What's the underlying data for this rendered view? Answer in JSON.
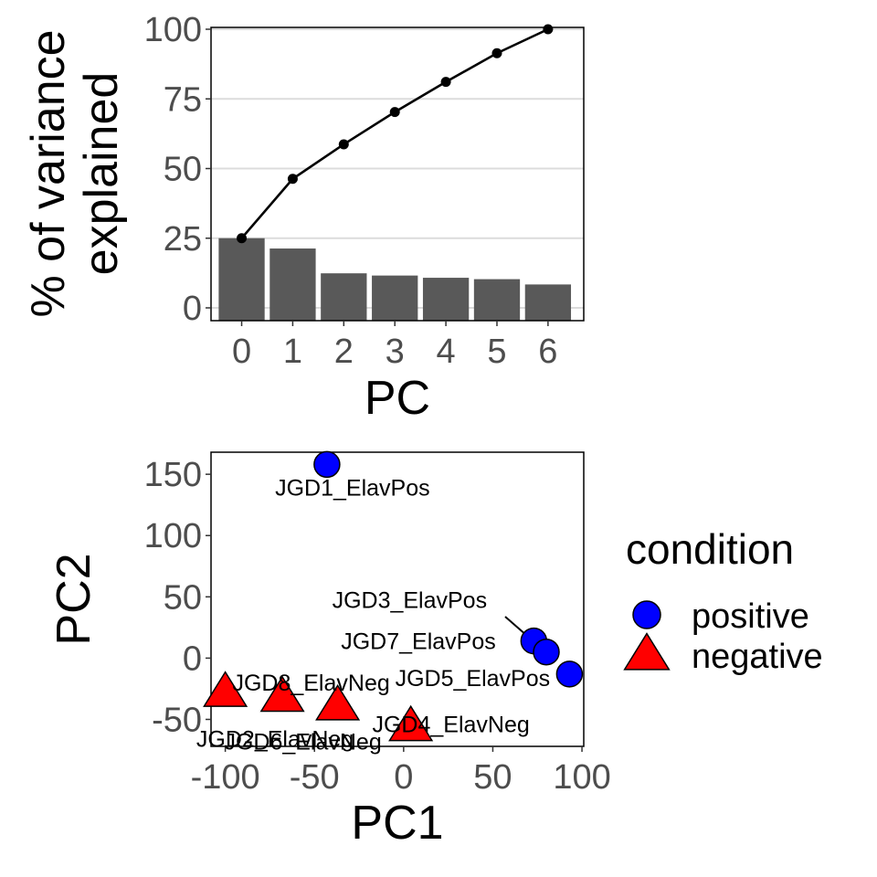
{
  "chart_data": [
    {
      "type": "bar",
      "categories": [
        "0",
        "1",
        "2",
        "3",
        "4",
        "5",
        "6"
      ],
      "values": [
        25.0,
        21.3,
        12.4,
        11.6,
        10.8,
        10.3,
        8.4
      ],
      "line": {
        "type": "line",
        "values": [
          25.0,
          46.3,
          58.7,
          70.3,
          81.1,
          91.4,
          100.0
        ]
      },
      "xlabel": "PC",
      "ylabel_lines": [
        "% of variance",
        "explained"
      ],
      "ylim": [
        0,
        100
      ],
      "yticks": [
        0,
        25,
        50,
        75,
        100
      ],
      "grid": "horizontal"
    },
    {
      "type": "scatter",
      "xlabel": "PC1",
      "ylabel": "PC2",
      "xlim": [
        -108,
        101
      ],
      "ylim": [
        -72,
        168
      ],
      "xticks": [
        -100,
        -50,
        0,
        50,
        100
      ],
      "yticks": [
        -50,
        0,
        50,
        100,
        150
      ],
      "points": [
        {
          "label": "JGD1_ElavPos",
          "x": -43,
          "y": 158,
          "condition": "positive"
        },
        {
          "label": "JGD3_ElavPos",
          "x": 73,
          "y": 14,
          "condition": "positive"
        },
        {
          "label": "JGD7_ElavPos",
          "x": 80,
          "y": 5,
          "condition": "positive"
        },
        {
          "label": "JGD5_ElavPos",
          "x": 93,
          "y": -13,
          "condition": "positive"
        },
        {
          "label": "JGD8_ElavNeg",
          "x": -100,
          "y": -28,
          "condition": "negative"
        },
        {
          "label": "JGD2_ElavNeg",
          "x": -68,
          "y": -32,
          "condition": "negative"
        },
        {
          "label": "JGD6_ElavNeg",
          "x": -37,
          "y": -39,
          "condition": "negative"
        },
        {
          "label": "JGD4_ElavNeg",
          "x": 4,
          "y": -56,
          "condition": "negative"
        }
      ],
      "legend": {
        "title": "condition",
        "position": "right",
        "entries": [
          {
            "name": "positive",
            "shape": "circle",
            "color": "#0000ff"
          },
          {
            "name": "negative",
            "shape": "triangle",
            "color": "#ff0000"
          }
        ]
      }
    }
  ]
}
